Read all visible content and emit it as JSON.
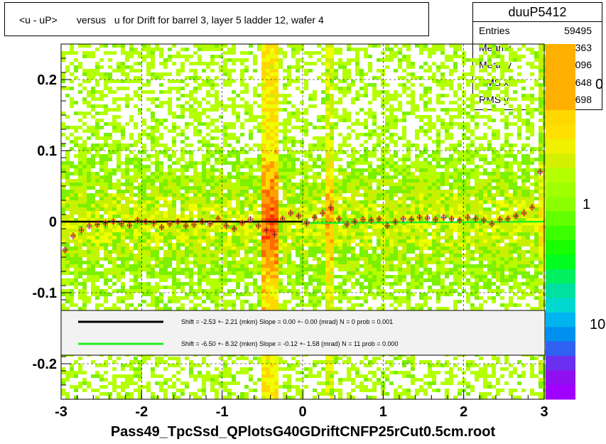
{
  "title": "<u - uP>       versus   u for Drift for barrel 3, layer 5 ladder 12, wafer 4",
  "stats": {
    "name": "duuP5412",
    "rows": [
      {
        "key": "Entries",
        "value": "59495"
      },
      {
        "key": "Mean x",
        "value": "-0.01363"
      },
      {
        "key": "Mean y",
        "value": "-0.0007096"
      },
      {
        "key": "RMS x",
        "value": "1.648"
      },
      {
        "key": "RMS y",
        "value": "0.08698"
      }
    ]
  },
  "xlabel": "Pass49_TpcSsd_QPlotsG40GDriftCNFP25rCut0.5cm.root",
  "colorbar_labels": [
    "0",
    "1",
    "10"
  ],
  "colors": {
    "black_fit": "#000000",
    "green_fit": "#22ee22",
    "points": "#ff3333"
  },
  "chart_data": {
    "type": "heatmap",
    "xlim": [
      -3,
      3
    ],
    "ylim": [
      -0.25,
      0.25
    ],
    "x_ticks": [
      "-3",
      "-2",
      "-1",
      "0",
      "1",
      "2",
      "3"
    ],
    "y_ticks": [
      "0.2",
      "0.1",
      "0",
      "-0.1",
      "-0.2"
    ],
    "grid": true,
    "legend": [
      {
        "color": "black",
        "text": "Shift =    -2.53 +- 2.21 (mkm) Slope =    0.00 +- 0.00 (mrad)  N = 0 prob = 0.001"
      },
      {
        "color": "green",
        "text": "Shift =    -6.50 +- 8.32 (mkm) Slope =    -0.12 +- 1.58 (mrad)  N = 11 prob = 0.000"
      }
    ],
    "profile_x": [
      -2.95,
      -2.85,
      -2.75,
      -2.65,
      -2.55,
      -2.45,
      -2.35,
      -2.25,
      -2.15,
      -2.05,
      -1.95,
      -1.85,
      -1.75,
      -1.65,
      -1.55,
      -1.45,
      -1.35,
      -1.25,
      -1.15,
      -1.05,
      -0.95,
      -0.85,
      -0.75,
      -0.65,
      -0.55,
      -0.45,
      -0.35,
      -0.25,
      -0.15,
      -0.05,
      0.05,
      0.15,
      0.25,
      0.35,
      0.45,
      0.55,
      0.65,
      0.75,
      0.85,
      0.95,
      1.05,
      1.15,
      1.25,
      1.35,
      1.45,
      1.55,
      1.65,
      1.75,
      1.85,
      1.95,
      2.05,
      2.15,
      2.25,
      2.35,
      2.45,
      2.55,
      2.65,
      2.75,
      2.85,
      2.95
    ],
    "profile_y": [
      -0.04,
      -0.02,
      -0.012,
      -0.006,
      -0.004,
      -0.002,
      0.0,
      -0.003,
      -0.005,
      0.002,
      0.0,
      -0.002,
      -0.008,
      -0.003,
      0.0,
      -0.006,
      -0.004,
      0.0,
      -0.003,
      0.004,
      -0.006,
      -0.01,
      -0.002,
      0.003,
      -0.006,
      -0.012,
      -0.018,
      0.004,
      0.012,
      0.008,
      -0.002,
      0.006,
      0.012,
      0.02,
      0.004,
      -0.004,
      0.0,
      0.003,
      0.002,
      0.004,
      -0.006,
      0.0,
      0.004,
      0.003,
      0.006,
      0.005,
      0.003,
      0.006,
      0.004,
      0.002,
      0.006,
      0.004,
      0.002,
      -0.003,
      0.003,
      0.004,
      0.008,
      0.012,
      0.02,
      0.07
    ]
  }
}
